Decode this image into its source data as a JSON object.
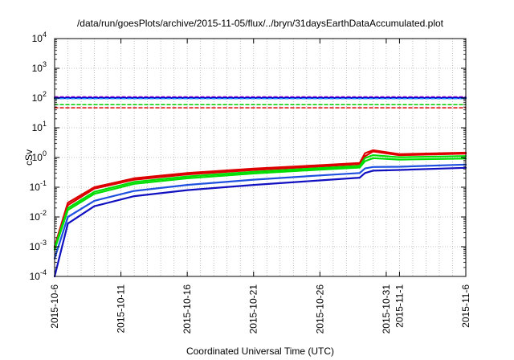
{
  "chart_data": {
    "type": "line",
    "title": "/data/run/goesPlots/archive/2015-11-05/flux/../bryn/31daysEarthDataAccumulated.plot",
    "xlabel": "Coordinated Universal Time (UTC)",
    "ylabel": "cSv",
    "y_scale": "log",
    "ylim_exponents": [
      -4,
      4
    ],
    "y_tick_labels": [
      {
        "base": "10",
        "exp": "-4"
      },
      {
        "base": "10",
        "exp": "-3"
      },
      {
        "base": "10",
        "exp": "-2"
      },
      {
        "base": "10",
        "exp": "-1"
      },
      {
        "base": "10",
        "exp": "0"
      },
      {
        "base": "10",
        "exp": "1"
      },
      {
        "base": "10",
        "exp": "2"
      },
      {
        "base": "10",
        "exp": "3"
      },
      {
        "base": "10",
        "exp": "4"
      }
    ],
    "xlim": [
      "2015-10-06",
      "2015-11-06"
    ],
    "x_tick_labels": [
      "2015-10-6",
      "2015-10-11",
      "2015-10-16",
      "2015-10-21",
      "2015-10-26",
      "2015-10-31",
      "2015-11-1",
      "2015-11-6"
    ],
    "x_tick_dates": [
      "2015-10-06",
      "2015-10-11",
      "2015-10-16",
      "2015-10-21",
      "2015-10-26",
      "2015-10-31",
      "2015-11-01",
      "2015-11-06"
    ],
    "grid": true,
    "series": [
      {
        "color": "#dd0000",
        "style": "solid",
        "x": [
          "2015-10-06",
          "2015-10-07",
          "2015-10-09",
          "2015-10-12",
          "2015-10-16",
          "2015-10-21",
          "2015-10-26",
          "2015-10-29",
          "2015-10-29.4",
          "2015-10-30",
          "2015-11-01",
          "2015-11-06"
        ],
        "values": [
          0.001,
          0.03,
          0.1,
          0.2,
          0.3,
          0.42,
          0.55,
          0.65,
          1.4,
          1.75,
          1.3,
          1.45
        ]
      },
      {
        "color": "#dd0000",
        "style": "solid",
        "x": [
          "2015-10-06",
          "2015-10-07",
          "2015-10-09",
          "2015-10-12",
          "2015-10-16",
          "2015-10-21",
          "2015-10-26",
          "2015-10-29",
          "2015-10-29.4",
          "2015-10-30",
          "2015-11-01",
          "2015-11-06"
        ],
        "values": [
          0.001,
          0.025,
          0.09,
          0.18,
          0.27,
          0.38,
          0.5,
          0.6,
          1.1,
          1.6,
          1.2,
          1.35
        ]
      },
      {
        "color": "#00dd00",
        "style": "solid",
        "x": [
          "2015-10-06",
          "2015-10-07",
          "2015-10-09",
          "2015-10-12",
          "2015-10-16",
          "2015-10-21",
          "2015-10-26",
          "2015-10-29",
          "2015-10-29.4",
          "2015-10-30",
          "2015-11-01",
          "2015-11-06"
        ],
        "values": [
          0.0009,
          0.02,
          0.07,
          0.15,
          0.23,
          0.33,
          0.44,
          0.52,
          0.95,
          1.2,
          1.02,
          1.12
        ]
      },
      {
        "color": "#00dd00",
        "style": "solid",
        "x": [
          "2015-10-06",
          "2015-10-07",
          "2015-10-09",
          "2015-10-12",
          "2015-10-16",
          "2015-10-21",
          "2015-10-26",
          "2015-10-29",
          "2015-10-29.4",
          "2015-10-30",
          "2015-11-01",
          "2015-11-06"
        ],
        "values": [
          0.0008,
          0.017,
          0.06,
          0.13,
          0.2,
          0.29,
          0.39,
          0.46,
          0.75,
          0.95,
          0.85,
          0.92
        ]
      },
      {
        "color": "#1e50e0",
        "style": "solid",
        "x": [
          "2015-10-06",
          "2015-10-07",
          "2015-10-09",
          "2015-10-12",
          "2015-10-16",
          "2015-10-21",
          "2015-10-26",
          "2015-10-29",
          "2015-10-29.4",
          "2015-10-30",
          "2015-11-01",
          "2015-11-06"
        ],
        "values": [
          0.0004,
          0.01,
          0.035,
          0.075,
          0.12,
          0.18,
          0.25,
          0.3,
          0.43,
          0.48,
          0.49,
          0.58
        ]
      },
      {
        "color": "#1010c0",
        "style": "solid",
        "x": [
          "2015-10-06",
          "2015-10-07",
          "2015-10-09",
          "2015-10-12",
          "2015-10-16",
          "2015-10-21",
          "2015-10-26",
          "2015-10-29",
          "2015-10-29.4",
          "2015-10-30",
          "2015-11-01",
          "2015-11-06"
        ],
        "values": [
          0.0001,
          0.006,
          0.023,
          0.05,
          0.08,
          0.12,
          0.17,
          0.21,
          0.3,
          0.36,
          0.38,
          0.45
        ]
      },
      {
        "color": "#9400d3",
        "style": "dashed",
        "x": [
          "2015-10-06",
          "2015-11-06"
        ],
        "values": [
          110,
          110
        ]
      },
      {
        "color": "#0000cc",
        "style": "solid",
        "x": [
          "2015-10-06",
          "2015-11-06"
        ],
        "values": [
          100,
          100
        ]
      },
      {
        "color": "#1e90ff",
        "style": "dashed",
        "x": [
          "2015-10-06",
          "2015-11-06"
        ],
        "values": [
          95,
          95
        ]
      },
      {
        "color": "#00cc00",
        "style": "dashed",
        "x": [
          "2015-10-06",
          "2015-11-06"
        ],
        "values": [
          60,
          60
        ]
      },
      {
        "color": "#dd0000",
        "style": "dashed",
        "x": [
          "2015-10-06",
          "2015-11-06"
        ],
        "values": [
          47,
          47
        ]
      }
    ]
  }
}
